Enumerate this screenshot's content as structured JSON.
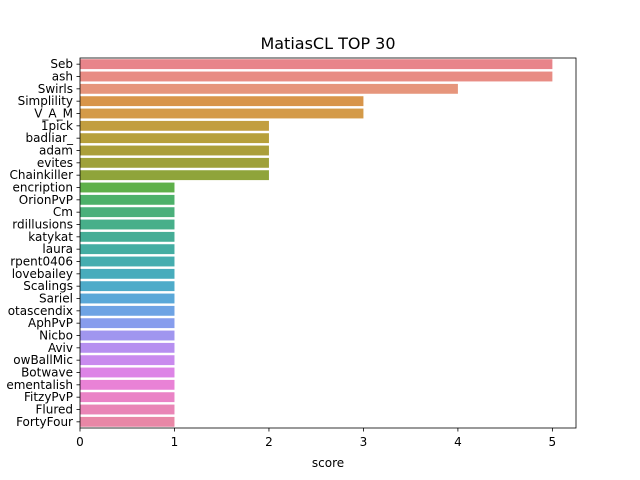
{
  "chart_data": {
    "type": "bar",
    "orientation": "horizontal",
    "title": "MatiasCL TOP 30",
    "xlabel": "score",
    "ylabel": "",
    "xlim": [
      0,
      5.25
    ],
    "xticks": [
      "0",
      "1",
      "2",
      "3",
      "4",
      "5"
    ],
    "grid": false,
    "legend": "none",
    "categories": [
      "Seb",
      "ash",
      "Swirls",
      "Simplility",
      "V_A_M",
      "1pick",
      "badliar_",
      "adam",
      "evites",
      "Chainkiller",
      "encription",
      "OrionPvP",
      "Cm",
      "rdillusions",
      "katykat",
      "laura",
      "rpent0406",
      "lovebailey",
      "Scalings",
      "Sariel",
      "otascendix",
      "AphPvP",
      "Nicbo",
      "Aviv",
      "owBallMic",
      "Botwave",
      "ementalish",
      "FitzyPvP",
      "Flured",
      "FortyFour"
    ],
    "values": [
      5,
      5,
      4,
      3,
      3,
      2,
      2,
      2,
      2,
      2,
      1,
      1,
      1,
      1,
      1,
      1,
      1,
      1,
      1,
      1,
      1,
      1,
      1,
      1,
      1,
      1,
      1,
      1,
      1,
      1
    ],
    "colors": [
      "#e8848a",
      "#e88c84",
      "#e6957c",
      "#d8954a",
      "#d49a48",
      "#c29e3f",
      "#b7a03b",
      "#ab9f3a",
      "#9fa13a",
      "#8fa43a",
      "#5fb04a",
      "#4db16a",
      "#4bb07b",
      "#47af8a",
      "#45ad96",
      "#44ada2",
      "#45adaf",
      "#47acbc",
      "#4eabc9",
      "#5aa8d8",
      "#6ea3e4",
      "#879ded",
      "#a096ef",
      "#b68ff0",
      "#c98aee",
      "#dd84e6",
      "#e982d6",
      "#ea83c6",
      "#e985b6",
      "#e887a6"
    ]
  }
}
